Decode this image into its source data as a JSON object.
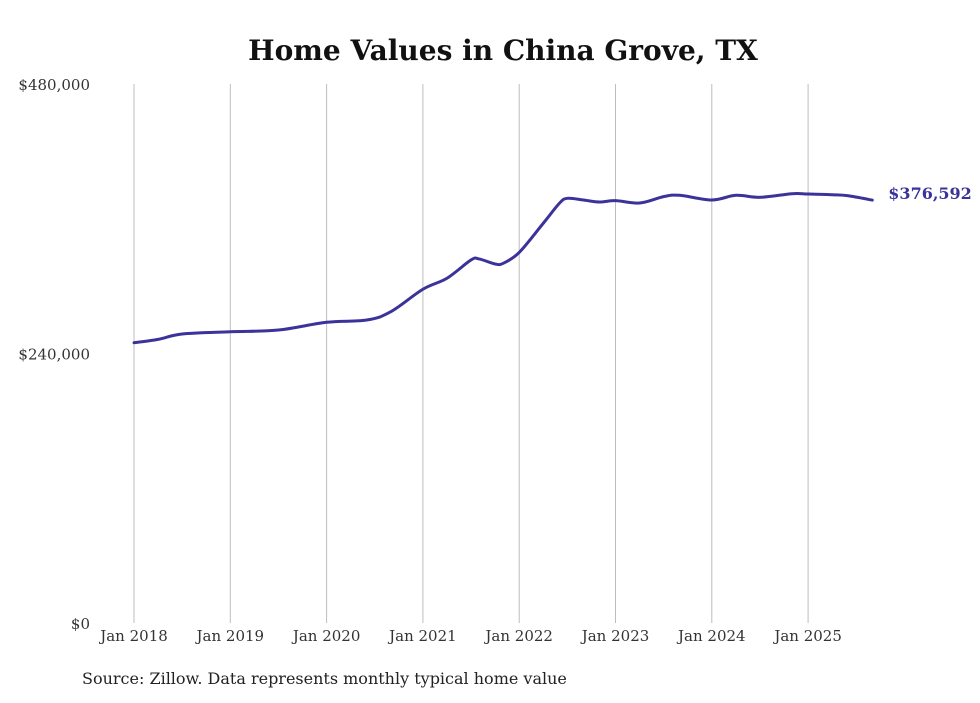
{
  "chart_data": {
    "type": "line",
    "title": "Home Values in China Grove, TX",
    "xlabel": "",
    "ylabel": "",
    "ylim": [
      0,
      480000
    ],
    "y_ticks": [
      {
        "value": 0,
        "label": "$0"
      },
      {
        "value": 240000,
        "label": "$240,000"
      },
      {
        "value": 480000,
        "label": "$480,000"
      }
    ],
    "x_ticks": [
      {
        "value": "2018-01",
        "label": "Jan 2018"
      },
      {
        "value": "2019-01",
        "label": "Jan 2019"
      },
      {
        "value": "2020-01",
        "label": "Jan 2020"
      },
      {
        "value": "2021-01",
        "label": "Jan 2021"
      },
      {
        "value": "2022-01",
        "label": "Jan 2022"
      },
      {
        "value": "2023-01",
        "label": "Jan 2023"
      },
      {
        "value": "2024-01",
        "label": "Jan 2024"
      },
      {
        "value": "2025-01",
        "label": "Jan 2025"
      }
    ],
    "grid": "vertical",
    "series": [
      {
        "name": "Typical home value",
        "color": "#3b3399",
        "points": [
          [
            "2018-01",
            249600
          ],
          [
            "2018-04",
            252600
          ],
          [
            "2018-07",
            257400
          ],
          [
            "2019-01",
            259400
          ],
          [
            "2019-07",
            260900
          ],
          [
            "2020-01",
            267800
          ],
          [
            "2020-06",
            269800
          ],
          [
            "2020-09",
            277200
          ],
          [
            "2021-01",
            297200
          ],
          [
            "2021-04",
            307000
          ],
          [
            "2021-07",
            323300
          ],
          [
            "2021-08",
            324200
          ],
          [
            "2021-10",
            319700
          ],
          [
            "2021-11",
            320300
          ],
          [
            "2022-01",
            330000
          ],
          [
            "2022-04",
            356000
          ],
          [
            "2022-06",
            373700
          ],
          [
            "2022-07",
            378200
          ],
          [
            "2022-09",
            376700
          ],
          [
            "2022-11",
            374900
          ],
          [
            "2023-01",
            376100
          ],
          [
            "2023-04",
            374000
          ],
          [
            "2023-07",
            379700
          ],
          [
            "2023-09",
            380900
          ],
          [
            "2024-01",
            376700
          ],
          [
            "2024-04",
            380900
          ],
          [
            "2024-07",
            379100
          ],
          [
            "2024-11",
            382300
          ],
          [
            "2025-01",
            382000
          ],
          [
            "2025-04",
            381400
          ],
          [
            "2025-06",
            380500
          ],
          [
            "2025-09",
            376592
          ]
        ]
      }
    ],
    "end_label": "$376,592",
    "source_note": "Source: Zillow. Data represents monthly typical home value"
  }
}
